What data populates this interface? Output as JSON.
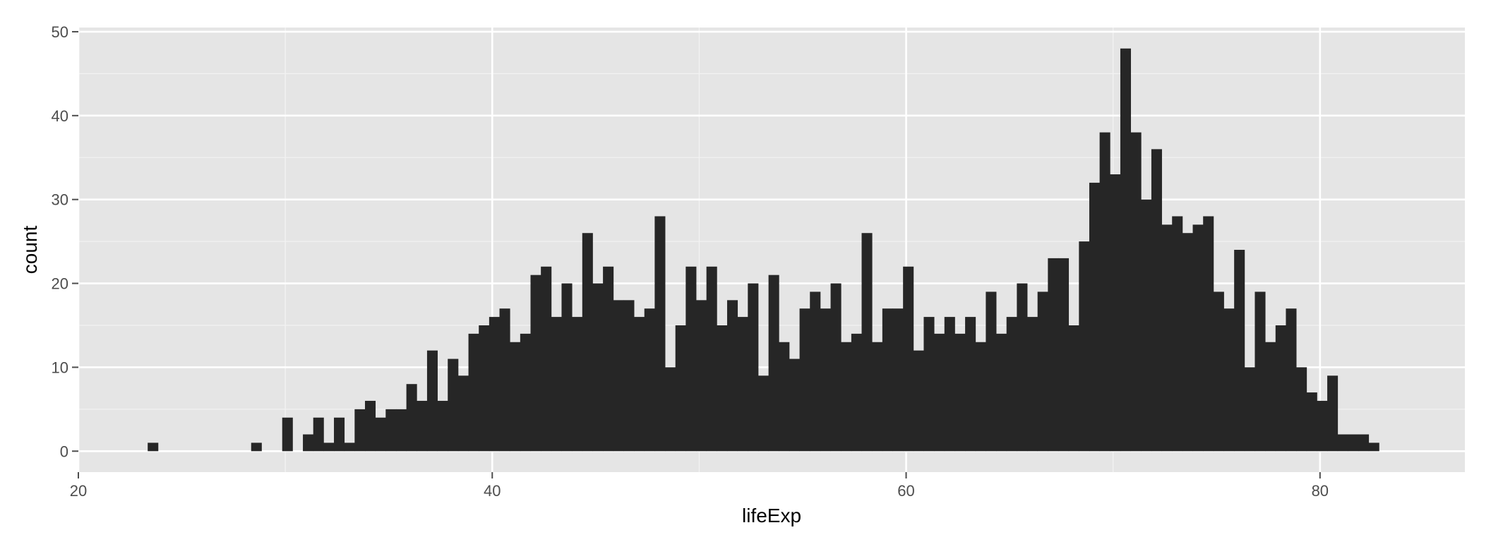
{
  "chart_data": {
    "type": "bar",
    "title": "",
    "xlabel": "lifeExp",
    "ylabel": "count",
    "xlim": [
      20,
      87
    ],
    "ylim": [
      -2.5,
      50.5
    ],
    "x_ticks": [
      20,
      40,
      60,
      80
    ],
    "y_ticks": [
      0,
      10,
      20,
      30,
      40,
      50
    ],
    "grid": true,
    "legend": "none",
    "bar_color": "#262626",
    "panel_color": "#E5E5E5",
    "bin_start": 23.35,
    "bin_width": 0.5,
    "counts": [
      1,
      0,
      0,
      0,
      0,
      0,
      0,
      0,
      0,
      0,
      1,
      0,
      0,
      4,
      0,
      2,
      4,
      1,
      4,
      1,
      5,
      6,
      4,
      5,
      5,
      8,
      6,
      12,
      6,
      11,
      9,
      14,
      15,
      16,
      17,
      13,
      14,
      21,
      22,
      16,
      20,
      16,
      26,
      20,
      22,
      18,
      18,
      16,
      17,
      28,
      10,
      15,
      22,
      18,
      22,
      15,
      18,
      16,
      20,
      9,
      21,
      13,
      11,
      17,
      19,
      17,
      20,
      13,
      14,
      26,
      13,
      17,
      17,
      22,
      12,
      16,
      14,
      16,
      14,
      16,
      13,
      19,
      14,
      16,
      20,
      16,
      19,
      23,
      23,
      15,
      25,
      32,
      38,
      33,
      48,
      38,
      30,
      36,
      27,
      28,
      26,
      27,
      28,
      19,
      17,
      24,
      10,
      19,
      13,
      15,
      17,
      10,
      7,
      6,
      9,
      2,
      2,
      2,
      1
    ]
  }
}
